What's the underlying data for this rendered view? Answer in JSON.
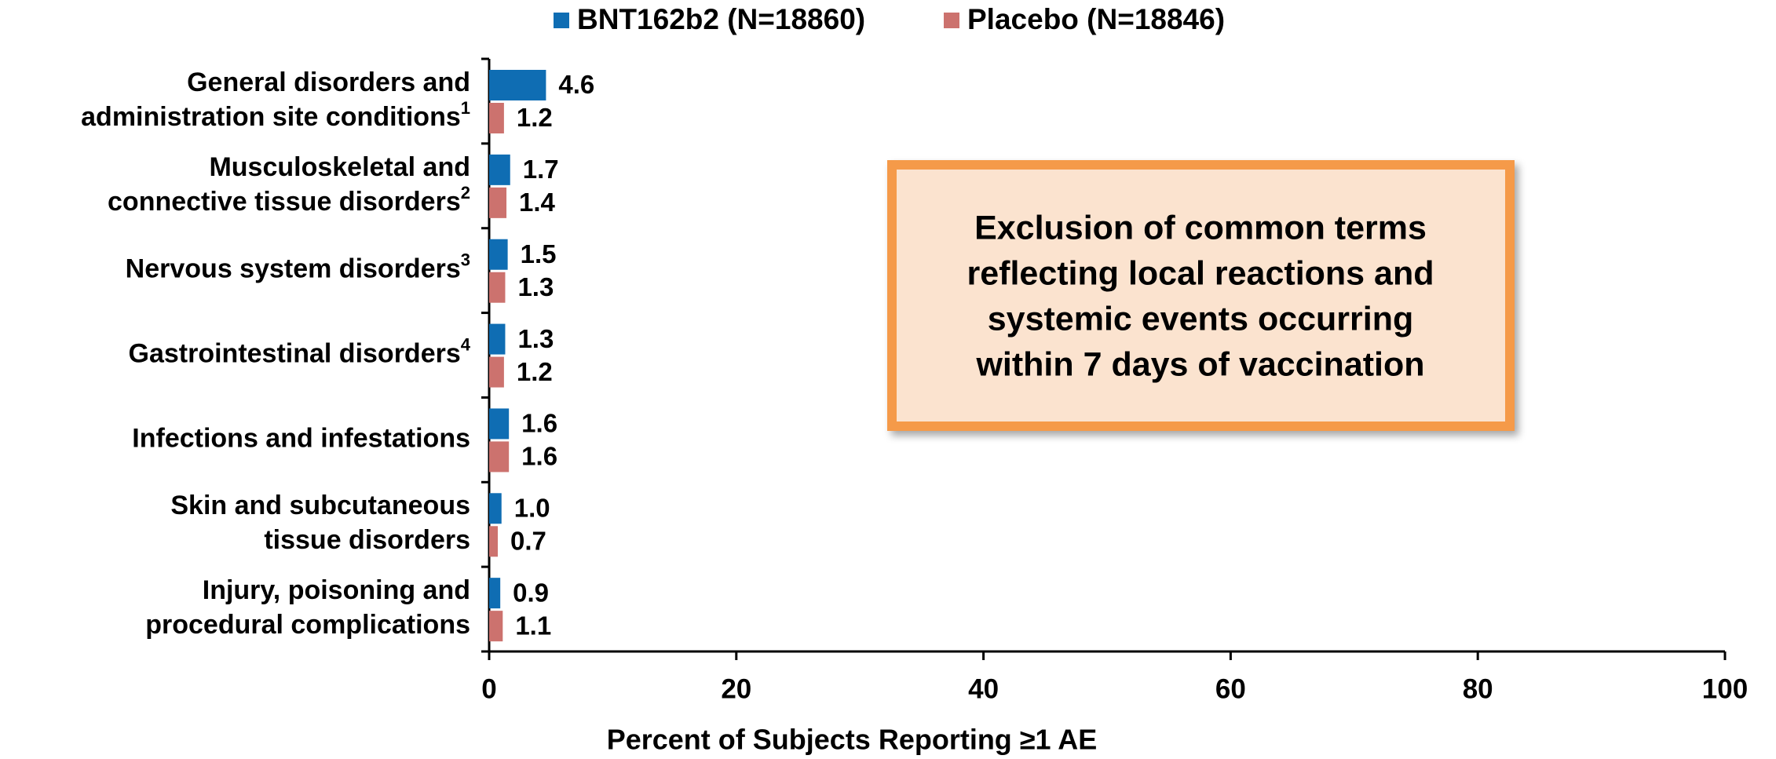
{
  "chart_data": {
    "type": "bar",
    "orientation": "horizontal",
    "categories": [
      [
        "General disorders and",
        "administration site conditions"
      ],
      [
        "Musculoskeletal and",
        "connective tissue disorders"
      ],
      [
        "Nervous system disorders"
      ],
      [
        "Gastrointestinal disorders"
      ],
      [
        "Infections and infestations"
      ],
      [
        "Skin and subcutaneous",
        "tissue disorders"
      ],
      [
        "Injury, poisoning and",
        "procedural complications"
      ]
    ],
    "category_notes": [
      "1",
      "2",
      "3",
      "4",
      null,
      null,
      null
    ],
    "series": [
      {
        "name": "BNT162b2 (N=18860)",
        "color": "#0f6db3",
        "values": [
          4.6,
          1.7,
          1.5,
          1.3,
          1.6,
          1.0,
          0.9
        ],
        "value_labels": [
          "4.6",
          "1.7",
          "1.5",
          "1.3",
          "1.6",
          "1.0",
          "0.9"
        ]
      },
      {
        "name": "Placebo (N=18846)",
        "color": "#cc726e",
        "values": [
          1.2,
          1.4,
          1.3,
          1.2,
          1.6,
          0.7,
          1.1
        ],
        "value_labels": [
          "1.2",
          "1.4",
          "1.3",
          "1.2",
          "1.6",
          "0.7",
          "1.1"
        ]
      }
    ],
    "xlabel": "Percent of Subjects Reporting ≥1 AE",
    "xlim": [
      0,
      100
    ],
    "xticks": [
      0,
      20,
      40,
      60,
      80,
      100
    ],
    "grid": false,
    "legend": "top",
    "annotation": [
      "Exclusion of common terms",
      "reflecting local reactions and",
      "systemic events occurring",
      "within 7 days of vaccination"
    ]
  }
}
